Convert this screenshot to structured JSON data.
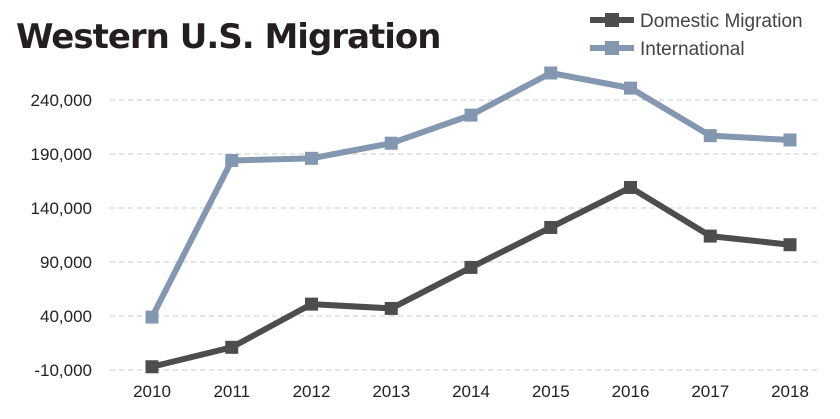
{
  "chart_data": {
    "type": "line",
    "title": "Western U.S. Migration",
    "xlabel": "",
    "ylabel": "",
    "categories": [
      "2010",
      "2011",
      "2012",
      "2013",
      "2014",
      "2015",
      "2016",
      "2017",
      "2018"
    ],
    "series": [
      {
        "name": "Domestic Migration",
        "color": "#4d4d4d",
        "values": [
          -7000,
          11000,
          51000,
          47000,
          85000,
          122000,
          159000,
          114000,
          106000
        ]
      },
      {
        "name": "International",
        "color": "#8497b0",
        "values": [
          39000,
          184000,
          186000,
          200000,
          226000,
          265000,
          251000,
          207000,
          203000
        ]
      }
    ],
    "y_ticks": [
      -10000,
      40000,
      90000,
      140000,
      190000,
      240000
    ],
    "y_tick_labels": [
      "-10,000",
      "40,000",
      "90,000",
      "140,000",
      "190,000",
      "240,000"
    ],
    "ylim": [
      -10000,
      265000
    ],
    "grid": true,
    "legend_position": "top-right"
  }
}
